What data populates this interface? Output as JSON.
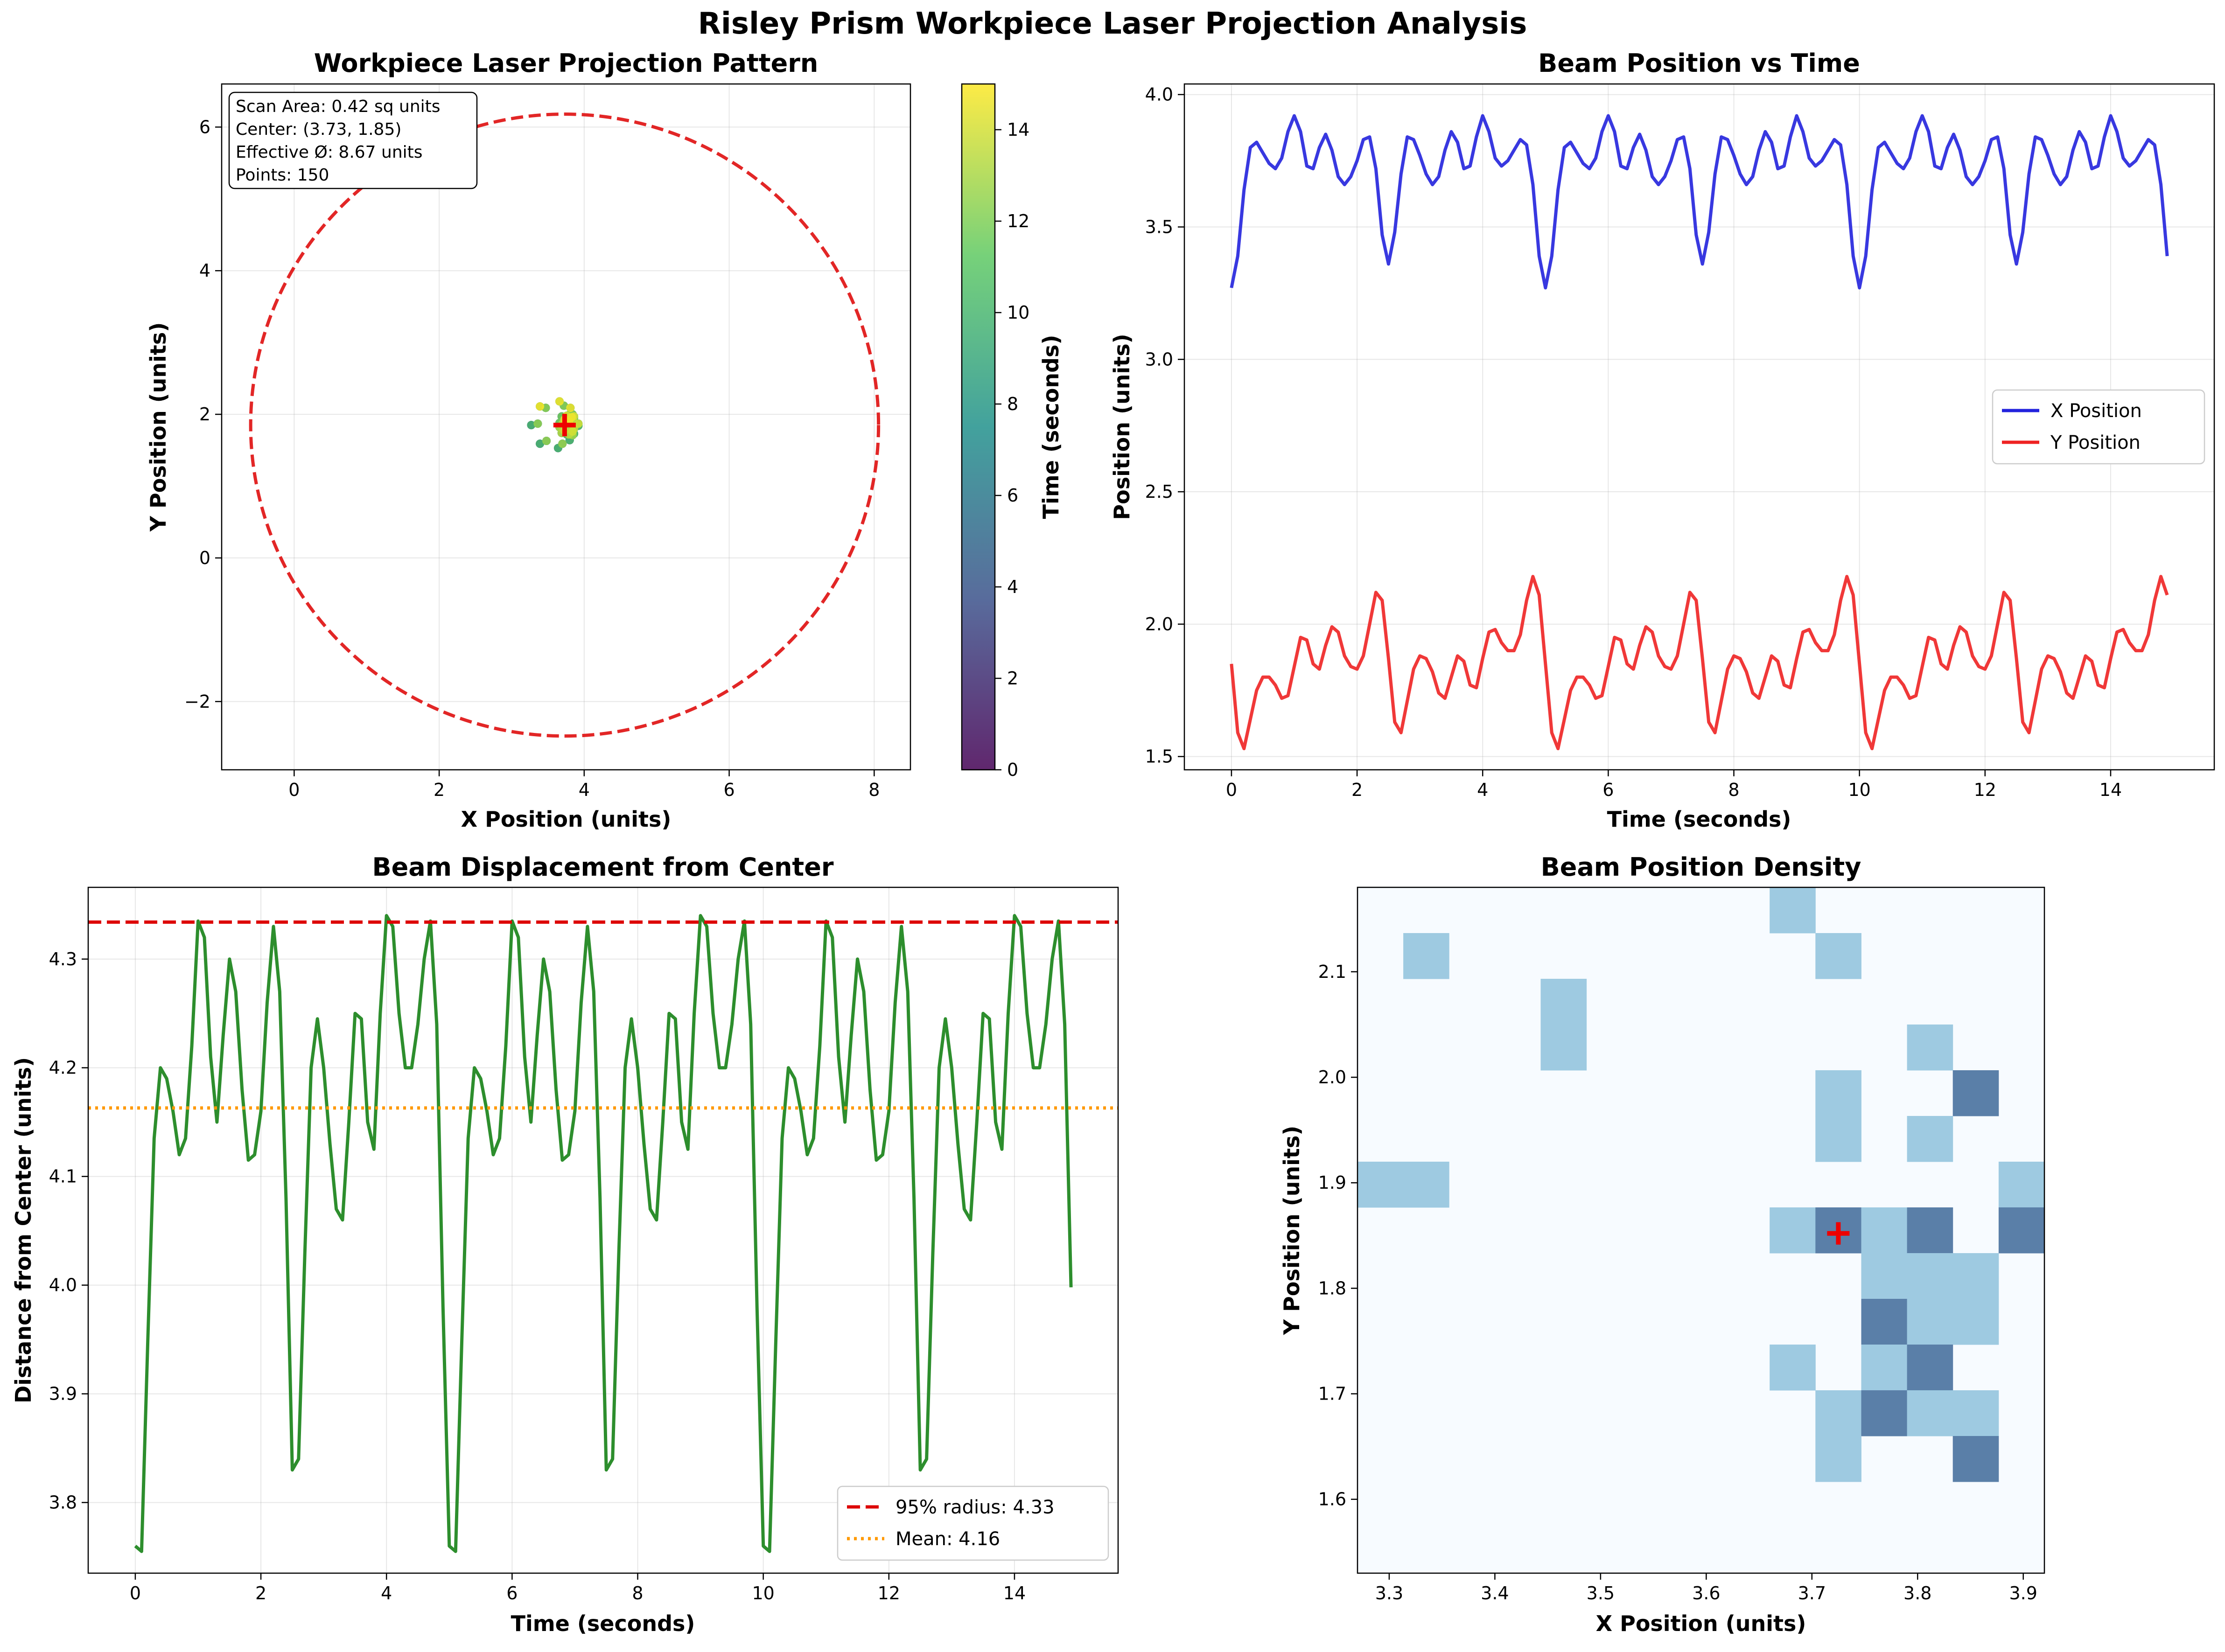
{
  "figure": {
    "suptitle": "Risley Prism Workpiece Laser Projection Analysis"
  },
  "colors": {
    "x_series": "#2222dd",
    "y_series": "#ee2222",
    "displacement": "#228822",
    "radius95": "#dd0000",
    "mean": "#ff9900",
    "center_marker": "#ee0000",
    "viridis": [
      "#440154",
      "#3b528b",
      "#21918c",
      "#5ec962",
      "#fde725"
    ],
    "density": [
      "#f7fbff",
      "#9ecae1",
      "#5a7fa8"
    ]
  },
  "chart_data": [
    {
      "id": "pattern",
      "type": "scatter",
      "title": "Workpiece Laser Projection Pattern",
      "xlabel": "X Position (units)",
      "ylabel": "Y Position (units)",
      "xlim": [
        -1.0,
        8.5
      ],
      "ylim": [
        -2.95,
        6.6
      ],
      "xticks": [
        0,
        2,
        4,
        6,
        8
      ],
      "yticks": [
        -2,
        0,
        2,
        4,
        6
      ],
      "grid": true,
      "dashed_circle": {
        "cx": 3.73,
        "cy": 1.85,
        "r": 4.33
      },
      "center": [
        3.73,
        1.85
      ],
      "info_box": [
        "Scan Area: 0.42 sq units",
        "Center: (3.73, 1.85)",
        "Effective Ø: 8.67 units",
        "Points: 150"
      ],
      "colorbar": {
        "label": "Time (seconds)",
        "range": [
          0,
          15
        ],
        "ticks": [
          0,
          2,
          4,
          6,
          8,
          10,
          12,
          14
        ]
      }
    },
    {
      "id": "timeseries",
      "type": "line",
      "title": "Beam Position vs Time",
      "xlabel": "Time (seconds)",
      "ylabel": "Position (units)",
      "xlim": [
        -0.75,
        15.65
      ],
      "ylim": [
        1.45,
        4.04
      ],
      "xticks": [
        0,
        2,
        4,
        6,
        8,
        10,
        12,
        14
      ],
      "yticks": [
        1.5,
        2.0,
        2.5,
        3.0,
        3.5,
        4.0
      ],
      "grid": true,
      "legend": "center-right",
      "series": [
        {
          "name": "X Position",
          "values": [
            3.27,
            3.39,
            3.64,
            3.8,
            3.82,
            3.78,
            3.74,
            3.72,
            3.76,
            3.86,
            3.92,
            3.86,
            3.73,
            3.72,
            3.8,
            3.85,
            3.79,
            3.69,
            3.66,
            3.69,
            3.75,
            3.83,
            3.84,
            3.72,
            3.47,
            3.36,
            3.48,
            3.7,
            3.84,
            3.83,
            3.77,
            3.7,
            3.66,
            3.69,
            3.79,
            3.86,
            3.82,
            3.72,
            3.73,
            3.84,
            3.92,
            3.86,
            3.76,
            3.73,
            3.75,
            3.79,
            3.83,
            3.81,
            3.66,
            3.39,
            3.27,
            3.39,
            3.64,
            3.8,
            3.82,
            3.78,
            3.74,
            3.72,
            3.76,
            3.86,
            3.92,
            3.86,
            3.73,
            3.72,
            3.8,
            3.85,
            3.79,
            3.69,
            3.66,
            3.69,
            3.75,
            3.83,
            3.84,
            3.72,
            3.47,
            3.36,
            3.48,
            3.7,
            3.84,
            3.83,
            3.77,
            3.7,
            3.66,
            3.69,
            3.79,
            3.86,
            3.82,
            3.72,
            3.73,
            3.84,
            3.92,
            3.86,
            3.76,
            3.73,
            3.75,
            3.79,
            3.83,
            3.81,
            3.66,
            3.39,
            3.27,
            3.39,
            3.64,
            3.8,
            3.82,
            3.78,
            3.74,
            3.72,
            3.76,
            3.86,
            3.92,
            3.86,
            3.73,
            3.72,
            3.8,
            3.85,
            3.79,
            3.69,
            3.66,
            3.69,
            3.75,
            3.83,
            3.84,
            3.72,
            3.47,
            3.36,
            3.48,
            3.7,
            3.84,
            3.83,
            3.77,
            3.7,
            3.66,
            3.69,
            3.79,
            3.86,
            3.82,
            3.72,
            3.73,
            3.84,
            3.92,
            3.86,
            3.76,
            3.73,
            3.75,
            3.79,
            3.83,
            3.81,
            3.66,
            3.39
          ]
        },
        {
          "name": "Y Position",
          "values": [
            1.85,
            1.59,
            1.53,
            1.64,
            1.75,
            1.8,
            1.8,
            1.77,
            1.72,
            1.73,
            1.84,
            1.95,
            1.94,
            1.85,
            1.83,
            1.92,
            1.99,
            1.97,
            1.88,
            1.84,
            1.83,
            1.88,
            2.0,
            2.12,
            2.09,
            1.87,
            1.63,
            1.59,
            1.71,
            1.83,
            1.88,
            1.87,
            1.82,
            1.74,
            1.72,
            1.8,
            1.88,
            1.86,
            1.77,
            1.76,
            1.87,
            1.97,
            1.98,
            1.93,
            1.9,
            1.9,
            1.96,
            2.09,
            2.18,
            2.11,
            1.85,
            1.59,
            1.53,
            1.64,
            1.75,
            1.8,
            1.8,
            1.77,
            1.72,
            1.73,
            1.84,
            1.95,
            1.94,
            1.85,
            1.83,
            1.92,
            1.99,
            1.97,
            1.88,
            1.84,
            1.83,
            1.88,
            2.0,
            2.12,
            2.09,
            1.87,
            1.63,
            1.59,
            1.71,
            1.83,
            1.88,
            1.87,
            1.82,
            1.74,
            1.72,
            1.8,
            1.88,
            1.86,
            1.77,
            1.76,
            1.87,
            1.97,
            1.98,
            1.93,
            1.9,
            1.9,
            1.96,
            2.09,
            2.18,
            2.11,
            1.85,
            1.59,
            1.53,
            1.64,
            1.75,
            1.8,
            1.8,
            1.77,
            1.72,
            1.73,
            1.84,
            1.95,
            1.94,
            1.85,
            1.83,
            1.92,
            1.99,
            1.97,
            1.88,
            1.84,
            1.83,
            1.88,
            2.0,
            2.12,
            2.09,
            1.87,
            1.63,
            1.59,
            1.71,
            1.83,
            1.88,
            1.87,
            1.82,
            1.74,
            1.72,
            1.8,
            1.88,
            1.86,
            1.77,
            1.76,
            1.87,
            1.97,
            1.98,
            1.93,
            1.9,
            1.9,
            1.96,
            2.09,
            2.18,
            2.11
          ]
        }
      ]
    },
    {
      "id": "displacement",
      "type": "line",
      "title": "Beam Displacement from Center",
      "xlabel": "Time (seconds)",
      "ylabel": "Distance from Center (units)",
      "xlim": [
        -0.75,
        15.65
      ],
      "ylim": [
        3.735,
        4.366
      ],
      "xticks": [
        0,
        2,
        4,
        6,
        8,
        10,
        12,
        14
      ],
      "yticks": [
        3.8,
        3.9,
        4.0,
        4.1,
        4.2,
        4.3
      ],
      "grid": true,
      "legend": "lower-right",
      "reference_lines": [
        {
          "name": "95% radius: 4.33",
          "value": 4.334,
          "style": "dashed"
        },
        {
          "name": "Mean: 4.16",
          "value": 4.163,
          "style": "dotted"
        }
      ],
      "values": [
        3.76,
        3.755,
        3.95,
        4.135,
        4.2,
        4.19,
        4.16,
        4.12,
        4.135,
        4.22,
        4.335,
        4.32,
        4.21,
        4.15,
        4.23,
        4.3,
        4.27,
        4.18,
        4.115,
        4.12,
        4.16,
        4.26,
        4.33,
        4.27,
        4.08,
        3.83,
        3.84,
        4.03,
        4.2,
        4.245,
        4.2,
        4.13,
        4.07,
        4.06,
        4.15,
        4.25,
        4.245,
        4.15,
        4.125,
        4.25,
        4.34,
        4.33,
        4.25,
        4.2,
        4.2,
        4.24,
        4.3,
        4.335,
        4.24,
        3.98,
        3.76,
        3.755,
        3.95,
        4.135,
        4.2,
        4.19,
        4.16,
        4.12,
        4.135,
        4.22,
        4.335,
        4.32,
        4.21,
        4.15,
        4.23,
        4.3,
        4.27,
        4.18,
        4.115,
        4.12,
        4.16,
        4.26,
        4.33,
        4.27,
        4.08,
        3.83,
        3.84,
        4.03,
        4.2,
        4.245,
        4.2,
        4.13,
        4.07,
        4.06,
        4.15,
        4.25,
        4.245,
        4.15,
        4.125,
        4.25,
        4.34,
        4.33,
        4.25,
        4.2,
        4.2,
        4.24,
        4.3,
        4.335,
        4.24,
        3.98,
        3.76,
        3.755,
        3.95,
        4.135,
        4.2,
        4.19,
        4.16,
        4.12,
        4.135,
        4.22,
        4.335,
        4.32,
        4.21,
        4.15,
        4.23,
        4.3,
        4.27,
        4.18,
        4.115,
        4.12,
        4.16,
        4.26,
        4.33,
        4.27,
        4.08,
        3.83,
        3.84,
        4.03,
        4.2,
        4.245,
        4.2,
        4.13,
        4.07,
        4.06,
        4.15,
        4.25,
        4.245,
        4.15,
        4.125,
        4.25,
        4.34,
        4.33,
        4.25,
        4.2,
        4.2,
        4.24,
        4.3,
        4.335,
        4.24,
        3.998
      ]
    },
    {
      "id": "density",
      "type": "heatmap",
      "title": "Beam Position Density",
      "xlabel": "X Position (units)",
      "ylabel": "Y Position (units)",
      "xlim": [
        3.27,
        3.92
      ],
      "ylim": [
        1.53,
        2.18
      ],
      "xticks": [
        3.3,
        3.4,
        3.5,
        3.6,
        3.7,
        3.8,
        3.9
      ],
      "yticks": [
        1.6,
        1.7,
        1.8,
        1.9,
        2.0,
        2.1
      ],
      "bins": 15,
      "center": [
        3.725,
        1.852
      ],
      "counts": [
        [
          0,
          0,
          0,
          0,
          0,
          0,
          0,
          0,
          0,
          1,
          0,
          0,
          0,
          0,
          0
        ],
        [
          0,
          1,
          0,
          0,
          0,
          0,
          0,
          0,
          0,
          0,
          1,
          0,
          0,
          0,
          0
        ],
        [
          0,
          0,
          0,
          0,
          1,
          0,
          0,
          0,
          0,
          0,
          0,
          0,
          0,
          0,
          0
        ],
        [
          0,
          0,
          0,
          0,
          1,
          0,
          0,
          0,
          0,
          0,
          0,
          0,
          1,
          0,
          0
        ],
        [
          0,
          0,
          0,
          0,
          0,
          0,
          0,
          0,
          0,
          0,
          1,
          0,
          0,
          2,
          0
        ],
        [
          0,
          0,
          0,
          0,
          0,
          0,
          0,
          0,
          0,
          0,
          1,
          0,
          1,
          0,
          0
        ],
        [
          1,
          1,
          0,
          0,
          0,
          0,
          0,
          0,
          0,
          0,
          0,
          0,
          0,
          0,
          1
        ],
        [
          0,
          0,
          0,
          0,
          0,
          0,
          0,
          0,
          0,
          1,
          2,
          1,
          2,
          0,
          2
        ],
        [
          0,
          0,
          0,
          0,
          0,
          0,
          0,
          0,
          0,
          0,
          0,
          1,
          1,
          1,
          0
        ],
        [
          0,
          0,
          0,
          0,
          0,
          0,
          0,
          0,
          0,
          0,
          0,
          2,
          1,
          1,
          0
        ],
        [
          0,
          0,
          0,
          0,
          0,
          0,
          0,
          0,
          0,
          1,
          0,
          1,
          2,
          0,
          0
        ],
        [
          0,
          0,
          0,
          0,
          0,
          0,
          0,
          0,
          0,
          0,
          1,
          2,
          1,
          1,
          0
        ],
        [
          0,
          0,
          0,
          0,
          0,
          0,
          0,
          0,
          0,
          0,
          1,
          0,
          0,
          2,
          0
        ],
        [
          0,
          0,
          0,
          0,
          0,
          0,
          0,
          0,
          0,
          0,
          0,
          0,
          0,
          0,
          0
        ],
        [
          0,
          0,
          0,
          0,
          0,
          0,
          0,
          0,
          0,
          0,
          0,
          0,
          0,
          0,
          0
        ]
      ]
    }
  ]
}
